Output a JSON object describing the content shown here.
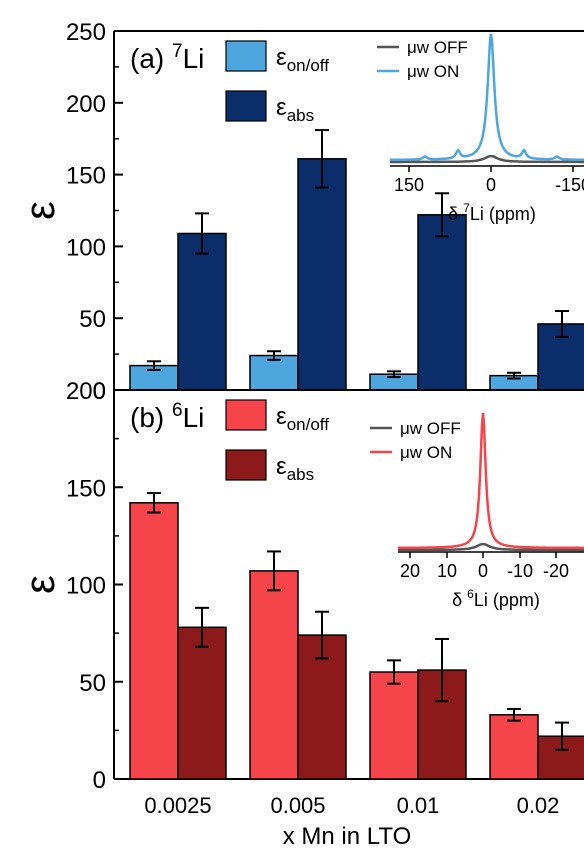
{
  "chart_data": [
    {
      "type": "bar",
      "panel_label": "(a)",
      "nucleus": "Li",
      "nucleus_mass": "7",
      "ylabel": "ε",
      "ylim": [
        0,
        250
      ],
      "yticks": [
        "0",
        "50",
        "100",
        "150",
        "200",
        "250"
      ],
      "categories": [
        "0.0025",
        "0.005",
        "0.01",
        "0.02"
      ],
      "series": [
        {
          "name": "εon/off",
          "name_main": "ε",
          "name_sub": "on/off",
          "color": "#4da6de",
          "values": [
            17,
            24,
            11,
            10
          ],
          "errors": [
            3,
            3,
            2,
            2
          ]
        },
        {
          "name": "εabs",
          "name_main": "ε",
          "name_sub": "abs",
          "color": "#0b2e6b",
          "values": [
            109,
            161,
            122,
            46
          ],
          "errors": [
            14,
            20,
            15,
            9
          ]
        }
      ],
      "inset": {
        "legend": [
          "μw OFF",
          "μw ON"
        ],
        "colors": [
          "#555555",
          "#4da6de"
        ],
        "xticks": [
          "150",
          "0",
          "-150"
        ],
        "xlabel_prefix": "δ ",
        "xlabel_sup": "7",
        "xlabel_suffix": "Li (ppm)"
      }
    },
    {
      "type": "bar",
      "panel_label": "(b)",
      "nucleus": "Li",
      "nucleus_mass": "6",
      "ylabel": "ε",
      "ylim": [
        0,
        200
      ],
      "yticks": [
        "0",
        "50",
        "100",
        "150",
        "200"
      ],
      "categories": [
        "0.0025",
        "0.005",
        "0.01",
        "0.02"
      ],
      "xlabel": "x Mn in LTO",
      "series": [
        {
          "name": "εon/off",
          "name_main": "ε",
          "name_sub": "on/off",
          "color": "#f5444a",
          "values": [
            142,
            107,
            55,
            33
          ],
          "errors": [
            5,
            10,
            6,
            3
          ]
        },
        {
          "name": "εabs",
          "name_main": "ε",
          "name_sub": "abs",
          "color": "#8c1a1a",
          "values": [
            78,
            74,
            56,
            22
          ],
          "errors": [
            10,
            12,
            16,
            7
          ]
        }
      ],
      "inset": {
        "legend": [
          "μw OFF",
          "μw ON"
        ],
        "colors": [
          "#555555",
          "#f5444a"
        ],
        "xticks": [
          "20",
          "10",
          "0",
          "-10",
          "-20"
        ],
        "xlabel_prefix": "δ ",
        "xlabel_sup": "6",
        "xlabel_suffix": "Li (ppm)"
      }
    }
  ]
}
